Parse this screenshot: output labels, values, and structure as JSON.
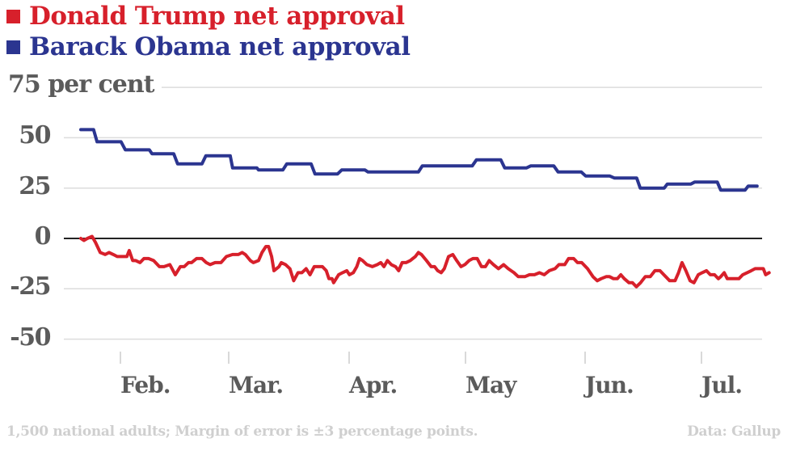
{
  "legend": [
    {
      "label": "Donald Trump net approval",
      "color": "#d7202b"
    },
    {
      "label": "Barack Obama net approval",
      "color": "#2b3590"
    }
  ],
  "footer": {
    "note": "1,500 national adults; Margin of error is ±3 percentage points.",
    "source": "Data: Gallup"
  },
  "chart_data": {
    "type": "line",
    "title": "",
    "xlabel": "",
    "ylabel": "75 per cent",
    "ylim": [
      -50,
      75
    ],
    "grid": true,
    "legend_position": "top-left",
    "x_unit": "days since Jan. 20",
    "xlim": [
      1,
      176
    ],
    "y_ticks": [
      {
        "value": 75,
        "label": "75 per cent"
      },
      {
        "value": 50,
        "label": "50"
      },
      {
        "value": 25,
        "label": "25"
      },
      {
        "value": 0,
        "label": "0"
      },
      {
        "value": -25,
        "label": "-25"
      },
      {
        "value": -50,
        "label": "-50"
      }
    ],
    "x_ticks": [
      {
        "value": 12,
        "label": "Feb."
      },
      {
        "value": 40,
        "label": "Mar."
      },
      {
        "value": 71,
        "label": "Apr."
      },
      {
        "value": 101,
        "label": "May"
      },
      {
        "value": 132,
        "label": "Jun."
      },
      {
        "value": 162,
        "label": "Jul."
      }
    ],
    "series": [
      {
        "name": "Barack Obama net approval",
        "color": "#2b3590",
        "step": true,
        "points": [
          [
            1,
            54
          ],
          [
            4.3,
            54
          ],
          [
            5.2,
            48
          ],
          [
            11.4,
            48
          ],
          [
            12.5,
            44
          ],
          [
            18.7,
            44
          ],
          [
            19.4,
            42
          ],
          [
            25,
            42
          ],
          [
            26,
            37
          ],
          [
            32.3,
            37
          ],
          [
            33.3,
            41
          ],
          [
            39.6,
            41
          ],
          [
            40.2,
            35
          ],
          [
            46.5,
            35
          ],
          [
            46.9,
            34
          ],
          [
            53.2,
            34
          ],
          [
            54.2,
            37
          ],
          [
            60.5,
            37
          ],
          [
            61.5,
            32
          ],
          [
            67.3,
            32
          ],
          [
            68.4,
            34
          ],
          [
            74.4,
            34
          ],
          [
            75.2,
            33
          ],
          [
            88.2,
            33
          ],
          [
            89.2,
            36
          ],
          [
            102.1,
            36
          ],
          [
            103.2,
            39
          ],
          [
            109.5,
            39
          ],
          [
            110.5,
            35
          ],
          [
            116.1,
            35
          ],
          [
            117.2,
            36
          ],
          [
            123.2,
            36
          ],
          [
            124.3,
            33
          ],
          [
            130.3,
            33
          ],
          [
            131.4,
            31
          ],
          [
            137.6,
            31
          ],
          [
            138.8,
            30
          ],
          [
            144.6,
            30
          ],
          [
            145.5,
            25
          ],
          [
            151.7,
            25
          ],
          [
            152.5,
            27
          ],
          [
            158.6,
            27
          ],
          [
            159.6,
            28
          ],
          [
            165.4,
            28
          ],
          [
            166.3,
            24
          ],
          [
            172.6,
            24
          ],
          [
            173.4,
            26
          ],
          [
            175.7,
            26
          ]
        ]
      },
      {
        "name": "Donald Trump net approval",
        "color": "#d7202b",
        "step": false,
        "points": [
          [
            1,
            0
          ],
          [
            1.8,
            -1
          ],
          [
            2.7,
            0
          ],
          [
            3.9,
            1
          ],
          [
            4.8,
            -2
          ],
          [
            6,
            -7
          ],
          [
            7.3,
            -8
          ],
          [
            8.3,
            -7
          ],
          [
            9.4,
            -8
          ],
          [
            10.4,
            -9
          ],
          [
            11.9,
            -9
          ],
          [
            12.9,
            -9
          ],
          [
            13.5,
            -6
          ],
          [
            14.4,
            -11
          ],
          [
            15.2,
            -11
          ],
          [
            16.3,
            -12
          ],
          [
            17.3,
            -10
          ],
          [
            18.5,
            -10
          ],
          [
            19.8,
            -11
          ],
          [
            21.3,
            -14
          ],
          [
            22.5,
            -14
          ],
          [
            24,
            -13
          ],
          [
            25.4,
            -18
          ],
          [
            26.7,
            -14
          ],
          [
            27.7,
            -14
          ],
          [
            28.8,
            -12
          ],
          [
            29.6,
            -12
          ],
          [
            30.9,
            -10
          ],
          [
            32.3,
            -10
          ],
          [
            33.4,
            -12
          ],
          [
            34.4,
            -13
          ],
          [
            35.7,
            -12
          ],
          [
            37.2,
            -12
          ],
          [
            38.6,
            -9
          ],
          [
            40.2,
            -8
          ],
          [
            41.7,
            -8
          ],
          [
            42.7,
            -7
          ],
          [
            43.5,
            -8
          ],
          [
            44.8,
            -11
          ],
          [
            45.6,
            -12
          ],
          [
            46.9,
            -11
          ],
          [
            47.8,
            -7
          ],
          [
            48.8,
            -4
          ],
          [
            49.5,
            -4
          ],
          [
            50.3,
            -9
          ],
          [
            50.9,
            -16
          ],
          [
            52.2,
            -14
          ],
          [
            52.8,
            -12
          ],
          [
            53.9,
            -13
          ],
          [
            55,
            -15
          ],
          [
            56,
            -21
          ],
          [
            57.1,
            -17
          ],
          [
            58.1,
            -17
          ],
          [
            59.2,
            -15
          ],
          [
            60.2,
            -18
          ],
          [
            61.3,
            -14
          ],
          [
            62.3,
            -14
          ],
          [
            63.4,
            -14
          ],
          [
            64.4,
            -16
          ],
          [
            65.1,
            -20
          ],
          [
            65.9,
            -20
          ],
          [
            66.3,
            -22
          ],
          [
            67.6,
            -18
          ],
          [
            68.6,
            -17
          ],
          [
            69.7,
            -16
          ],
          [
            70.4,
            -18
          ],
          [
            71.4,
            -17
          ],
          [
            72.3,
            -14
          ],
          [
            73,
            -10
          ],
          [
            73.8,
            -11
          ],
          [
            74.9,
            -13
          ],
          [
            76.3,
            -14
          ],
          [
            77.6,
            -13
          ],
          [
            78.5,
            -12
          ],
          [
            79.3,
            -14
          ],
          [
            80.2,
            -11
          ],
          [
            81.2,
            -13
          ],
          [
            82.3,
            -14
          ],
          [
            83.1,
            -16
          ],
          [
            84,
            -12
          ],
          [
            85,
            -12
          ],
          [
            86.1,
            -11
          ],
          [
            87.4,
            -9
          ],
          [
            88.2,
            -7
          ],
          [
            89,
            -8
          ],
          [
            90.3,
            -11
          ],
          [
            91.5,
            -14
          ],
          [
            92.4,
            -14
          ],
          [
            93.2,
            -16
          ],
          [
            94.1,
            -17
          ],
          [
            94.9,
            -15
          ],
          [
            96,
            -9
          ],
          [
            97.1,
            -8
          ],
          [
            98.1,
            -11
          ],
          [
            99.2,
            -14
          ],
          [
            100.2,
            -13
          ],
          [
            101.3,
            -11
          ],
          [
            102.3,
            -10
          ],
          [
            103.4,
            -10
          ],
          [
            104.5,
            -14
          ],
          [
            105.5,
            -14
          ],
          [
            106.5,
            -11
          ],
          [
            107.6,
            -13
          ],
          [
            108.9,
            -15
          ],
          [
            110.2,
            -13
          ],
          [
            111.4,
            -15
          ],
          [
            112.9,
            -17
          ],
          [
            114,
            -19
          ],
          [
            115.7,
            -19
          ],
          [
            116.9,
            -18
          ],
          [
            118.2,
            -18
          ],
          [
            119.5,
            -17
          ],
          [
            120.7,
            -18
          ],
          [
            122,
            -16
          ],
          [
            123.5,
            -15
          ],
          [
            124.5,
            -13
          ],
          [
            126,
            -13
          ],
          [
            127,
            -10
          ],
          [
            128.3,
            -10
          ],
          [
            129.3,
            -12
          ],
          [
            130.4,
            -12
          ],
          [
            131.9,
            -15
          ],
          [
            133.3,
            -19
          ],
          [
            134.4,
            -21
          ],
          [
            135.4,
            -20
          ],
          [
            136.7,
            -19
          ],
          [
            137.6,
            -19
          ],
          [
            138.6,
            -20
          ],
          [
            139.6,
            -20
          ],
          [
            140.5,
            -18
          ],
          [
            141.4,
            -20
          ],
          [
            142.6,
            -22
          ],
          [
            143.5,
            -22
          ],
          [
            144.5,
            -24
          ],
          [
            145.6,
            -22
          ],
          [
            146.8,
            -19
          ],
          [
            148.1,
            -19
          ],
          [
            149.3,
            -16
          ],
          [
            150.6,
            -16
          ],
          [
            151.6,
            -18
          ],
          [
            153.1,
            -21
          ],
          [
            154.5,
            -21
          ],
          [
            155.4,
            -17
          ],
          [
            156.3,
            -12
          ],
          [
            157.3,
            -16
          ],
          [
            158.4,
            -21
          ],
          [
            159.4,
            -22
          ],
          [
            160.5,
            -18
          ],
          [
            161.5,
            -17
          ],
          [
            162.6,
            -16
          ],
          [
            163.6,
            -18
          ],
          [
            164.7,
            -18
          ],
          [
            165.7,
            -20
          ],
          [
            166.3,
            -19
          ],
          [
            167.2,
            -17
          ],
          [
            168,
            -20
          ],
          [
            169.5,
            -20
          ],
          [
            171,
            -20
          ],
          [
            172,
            -18
          ],
          [
            173.1,
            -17
          ],
          [
            174.2,
            -16
          ],
          [
            175.2,
            -15
          ],
          [
            176.2,
            -15
          ],
          [
            177.3,
            -15
          ],
          [
            177.9,
            -18
          ],
          [
            178.8,
            -17
          ]
        ]
      }
    ]
  }
}
